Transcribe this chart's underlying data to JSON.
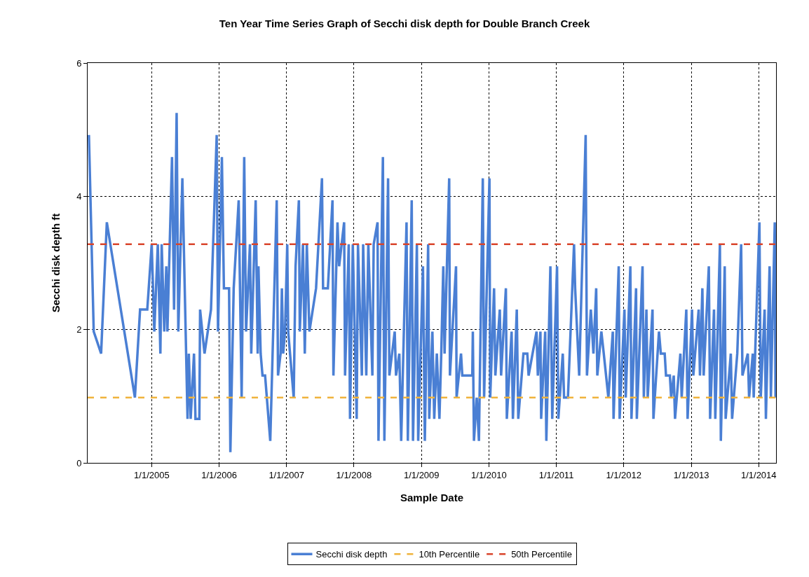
{
  "chart_data": {
    "type": "line",
    "title": "Ten Year Time Series Graph of Secchi disk depth for Double Branch Creek",
    "xlabel": "Sample Date",
    "ylabel": "Secchi disk depth ft",
    "xlim": [
      "2004-01-20",
      "2014-04-05"
    ],
    "ylim": [
      0,
      6
    ],
    "yticks": [
      0,
      2,
      4,
      6
    ],
    "xticks": [
      {
        "value": "2005-01-01",
        "label": "1/1/2005"
      },
      {
        "value": "2006-01-01",
        "label": "1/1/2006"
      },
      {
        "value": "2007-01-01",
        "label": "1/1/2007"
      },
      {
        "value": "2008-01-01",
        "label": "1/1/2008"
      },
      {
        "value": "2009-01-01",
        "label": "1/1/2009"
      },
      {
        "value": "2010-01-01",
        "label": "1/1/2010"
      },
      {
        "value": "2011-01-01",
        "label": "1/1/2011"
      },
      {
        "value": "2012-01-01",
        "label": "1/1/2012"
      },
      {
        "value": "2013-01-01",
        "label": "1/1/2013"
      },
      {
        "value": "2014-01-01",
        "label": "1/1/2014"
      }
    ],
    "grid": true,
    "legend": "bottom",
    "line_style": "solid",
    "marker": "none",
    "x": [
      "2004-01-27",
      "2004-02-22",
      "2004-04-02",
      "2004-05-03",
      "2004-10-02",
      "2004-10-30",
      "2004-12-08",
      "2005-01-01",
      "2005-01-15",
      "2005-02-03",
      "2005-02-17",
      "2005-02-24",
      "2005-03-10",
      "2005-03-21",
      "2005-03-27",
      "2005-04-21",
      "2005-05-02",
      "2005-05-16",
      "2005-05-25",
      "2005-06-16",
      "2005-07-14",
      "2005-07-21",
      "2005-07-31",
      "2005-08-18",
      "2005-08-26",
      "2005-09-16",
      "2005-09-20",
      "2005-10-14",
      "2005-11-18",
      "2005-12-19",
      "2005-12-26",
      "2006-01-16",
      "2006-01-27",
      "2006-02-24",
      "2006-03-03",
      "2006-03-21",
      "2006-04-17",
      "2006-05-03",
      "2006-05-17",
      "2006-05-27",
      "2006-06-17",
      "2006-06-24",
      "2006-07-18",
      "2006-07-29",
      "2006-08-02",
      "2006-08-14",
      "2006-08-24",
      "2006-09-07",
      "2006-10-05",
      "2006-11-09",
      "2006-11-16",
      "2006-11-30",
      "2006-12-07",
      "2006-12-14",
      "2006-12-24",
      "2007-01-05",
      "2007-01-10",
      "2007-02-09",
      "2007-02-19",
      "2007-03-09",
      "2007-03-14",
      "2007-03-31",
      "2007-04-10",
      "2007-04-21",
      "2007-05-05",
      "2007-06-10",
      "2007-07-12",
      "2007-07-18",
      "2007-08-13",
      "2007-09-07",
      "2007-09-12",
      "2007-10-04",
      "2007-10-13",
      "2007-11-09",
      "2007-11-14",
      "2007-12-04",
      "2007-12-11",
      "2007-12-26",
      "2008-01-16",
      "2008-01-23",
      "2008-02-13",
      "2008-02-20",
      "2008-03-08",
      "2008-03-19",
      "2008-04-10",
      "2008-04-17",
      "2008-05-08",
      "2008-05-13",
      "2008-06-06",
      "2008-06-14",
      "2008-07-04",
      "2008-07-11",
      "2008-08-09",
      "2008-08-16",
      "2008-09-03",
      "2008-09-13",
      "2008-10-12",
      "2008-10-19",
      "2008-11-09",
      "2008-11-16",
      "2008-12-07",
      "2008-12-14",
      "2009-01-09",
      "2009-01-19",
      "2009-02-06",
      "2009-02-12",
      "2009-03-01",
      "2009-03-11",
      "2009-03-25",
      "2009-04-08",
      "2009-04-18",
      "2009-04-29",
      "2009-05-06",
      "2009-05-31",
      "2009-06-04",
      "2009-07-07",
      "2009-07-10",
      "2009-08-03",
      "2009-08-10",
      "2009-10-03",
      "2009-10-06",
      "2009-10-12",
      "2009-10-27",
      "2009-11-08",
      "2009-11-29",
      "2009-12-06",
      "2010-01-04",
      "2010-01-08",
      "2010-01-29",
      "2010-02-05",
      "2010-03-01",
      "2010-03-08",
      "2010-04-03",
      "2010-04-08",
      "2010-05-04",
      "2010-05-11",
      "2010-06-01",
      "2010-06-09",
      "2010-07-07",
      "2010-07-28",
      "2010-08-04",
      "2010-09-16",
      "2010-09-23",
      "2010-10-07",
      "2010-10-11",
      "2010-11-02",
      "2010-11-08",
      "2010-11-30",
      "2010-12-10",
      "2011-01-05",
      "2011-01-12",
      "2011-02-05",
      "2011-02-12",
      "2011-03-05",
      "2011-04-07",
      "2011-04-13",
      "2011-05-05",
      "2011-06-09",
      "2011-06-16",
      "2011-07-07",
      "2011-07-21",
      "2011-08-05",
      "2011-08-11",
      "2011-09-02",
      "2011-09-15",
      "2011-10-10",
      "2011-11-03",
      "2011-11-07",
      "2011-12-05",
      "2011-12-10",
      "2012-01-05",
      "2012-01-12",
      "2012-02-06",
      "2012-02-12",
      "2012-03-08",
      "2012-03-12",
      "2012-04-12",
      "2012-04-19",
      "2012-05-03",
      "2012-05-10",
      "2012-06-05",
      "2012-06-10",
      "2012-07-10",
      "2012-07-20",
      "2012-08-10",
      "2012-08-17",
      "2012-09-07",
      "2012-09-14",
      "2012-09-28",
      "2012-10-05",
      "2012-11-03",
      "2012-11-10",
      "2012-12-05",
      "2012-12-12",
      "2013-01-05",
      "2013-01-12",
      "2013-02-10",
      "2013-02-17",
      "2013-03-02",
      "2013-03-09",
      "2013-04-06",
      "2013-04-13",
      "2013-05-04",
      "2013-05-11",
      "2013-06-05",
      "2013-06-10",
      "2013-07-01",
      "2013-07-06",
      "2013-08-03",
      "2013-08-10",
      "2013-09-07",
      "2013-09-28",
      "2013-10-05",
      "2013-11-03",
      "2013-11-10",
      "2013-11-30",
      "2013-12-05",
      "2014-01-05",
      "2014-01-12",
      "2014-02-02",
      "2014-02-09",
      "2014-03-01",
      "2014-03-08",
      "2014-03-29",
      "2014-04-02"
    ],
    "series": [
      {
        "name": "Secchi disk depth",
        "color": "#4a7fd4",
        "values": [
          4.92,
          1.97,
          1.64,
          3.61,
          0.98,
          2.3,
          2.3,
          3.28,
          1.97,
          3.28,
          1.64,
          3.28,
          1.97,
          2.95,
          1.97,
          4.59,
          2.3,
          5.25,
          1.97,
          4.27,
          0.66,
          1.64,
          0.66,
          1.64,
          0.66,
          0.66,
          2.3,
          1.64,
          2.3,
          4.92,
          1.97,
          4.59,
          2.62,
          2.62,
          0.16,
          2.62,
          3.94,
          0.98,
          4.59,
          1.97,
          3.28,
          1.64,
          3.94,
          1.64,
          2.95,
          1.64,
          1.31,
          1.31,
          0.33,
          3.94,
          1.31,
          1.64,
          2.62,
          1.64,
          1.97,
          3.28,
          1.97,
          0.98,
          2.95,
          3.94,
          1.97,
          3.28,
          1.64,
          3.28,
          1.97,
          2.62,
          4.27,
          2.62,
          2.62,
          3.94,
          1.31,
          3.61,
          2.95,
          3.61,
          1.31,
          3.28,
          0.66,
          3.28,
          0.66,
          3.28,
          1.31,
          3.28,
          1.31,
          3.28,
          1.31,
          3.28,
          3.61,
          0.33,
          4.59,
          0.33,
          4.27,
          1.31,
          1.97,
          1.31,
          1.64,
          0.33,
          3.61,
          0.33,
          3.94,
          0.33,
          3.28,
          0.33,
          2.95,
          0.33,
          3.28,
          0.66,
          1.97,
          0.66,
          1.64,
          0.66,
          1.64,
          2.95,
          1.64,
          4.27,
          1.31,
          2.95,
          0.98,
          1.64,
          1.31,
          1.31,
          1.97,
          0.33,
          0.98,
          0.33,
          4.27,
          0.98,
          4.27,
          0.98,
          2.62,
          1.31,
          2.3,
          1.31,
          2.62,
          0.66,
          1.97,
          0.66,
          2.3,
          0.66,
          1.64,
          1.64,
          1.31,
          1.97,
          1.31,
          1.97,
          0.66,
          1.97,
          0.33,
          2.95,
          0.66,
          2.95,
          0.66,
          1.64,
          0.98,
          0.98,
          3.28,
          2.62,
          1.31,
          4.92,
          1.31,
          2.3,
          1.64,
          2.62,
          1.31,
          1.97,
          1.64,
          0.98,
          1.97,
          0.66,
          2.95,
          0.66,
          2.3,
          0.98,
          2.95,
          0.66,
          2.62,
          0.66,
          2.95,
          0.98,
          2.3,
          0.98,
          2.3,
          0.66,
          1.97,
          1.64,
          1.64,
          1.31,
          1.31,
          0.98,
          1.31,
          0.66,
          1.64,
          0.98,
          2.3,
          0.66,
          2.3,
          1.31,
          2.3,
          1.31,
          2.62,
          1.31,
          2.95,
          0.66,
          2.3,
          0.66,
          3.28,
          0.33,
          2.95,
          0.66,
          1.64,
          0.66,
          1.64,
          3.28,
          1.31,
          1.64,
          0.98,
          1.64,
          0.98,
          3.61,
          0.98,
          2.3,
          0.66,
          2.95,
          0.98,
          3.61,
          0.98
        ]
      }
    ],
    "ref_lines": [
      {
        "axis": "y",
        "value": 0.98,
        "label": "10th Percentile",
        "color": "#f0b33c",
        "line_style": "dashed"
      },
      {
        "axis": "y",
        "value": 3.28,
        "label": "50th Percentile",
        "color": "#d9452c",
        "line_style": "dashed"
      }
    ]
  }
}
